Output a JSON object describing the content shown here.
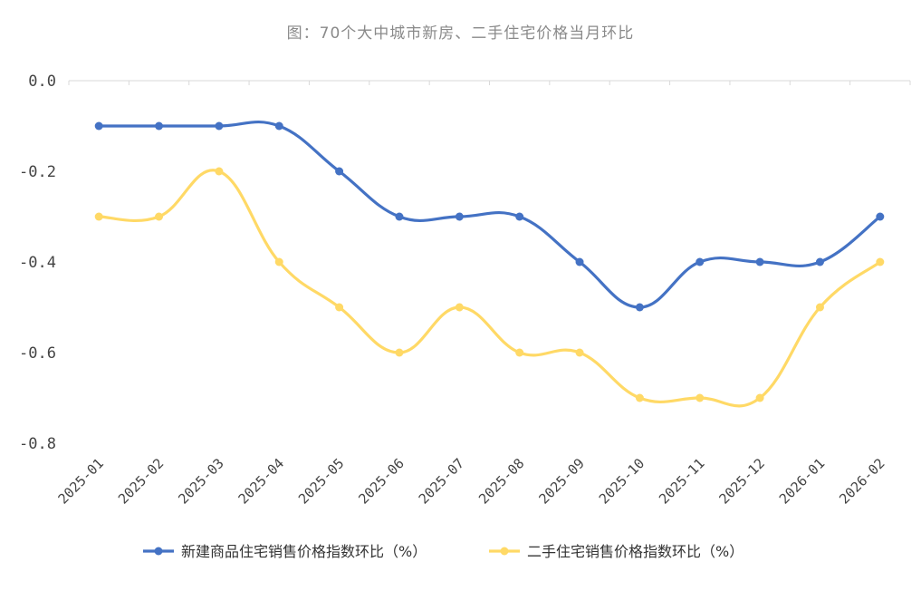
{
  "chart_data": {
    "type": "line",
    "title": "图：70个大中城市新房、二手住宅价格当月环比",
    "xlabel": "",
    "ylabel": "",
    "categories": [
      "2025-01",
      "2025-02",
      "2025-03",
      "2025-04",
      "2025-05",
      "2025-06",
      "2025-07",
      "2025-08",
      "2025-09",
      "2025-10",
      "2025-11",
      "2025-12",
      "2026-01",
      "2026-02"
    ],
    "ylim": [
      -0.8,
      0.0
    ],
    "yticks": [
      0.0,
      -0.2,
      -0.4,
      -0.6,
      -0.8
    ],
    "ytick_labels": [
      "0.0",
      "-0.2",
      "-0.4",
      "-0.6",
      "-0.8"
    ],
    "grid": false,
    "legend_position": "bottom",
    "series": [
      {
        "name": "新建商品住宅销售价格指数环比（%）",
        "color": "#4472c4",
        "values": [
          -0.1,
          -0.1,
          -0.1,
          -0.1,
          -0.2,
          -0.3,
          -0.3,
          -0.3,
          -0.4,
          -0.5,
          -0.4,
          -0.4,
          -0.4,
          -0.3
        ]
      },
      {
        "name": "二手住宅销售价格指数环比（%）",
        "color": "#ffd966",
        "values": [
          -0.3,
          -0.3,
          -0.2,
          -0.4,
          -0.5,
          -0.6,
          -0.5,
          -0.6,
          -0.6,
          -0.7,
          -0.7,
          -0.7,
          -0.5,
          -0.4
        ]
      }
    ]
  }
}
